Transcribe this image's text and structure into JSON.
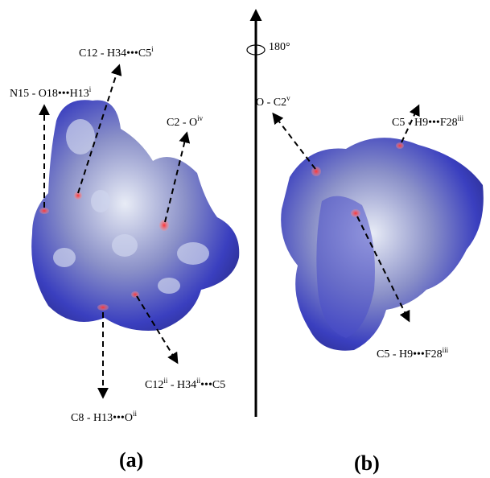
{
  "rotation": "180°",
  "panels": [
    {
      "label": "(a)",
      "annotations": [
        [
          {
            "t": "N15 - O18•••H13"
          },
          {
            "sup": "i"
          }
        ],
        [
          {
            "t": "C12 - H34•••C5"
          },
          {
            "sup": "i"
          }
        ],
        [
          {
            "t": "C2 - O"
          },
          {
            "sup": "iv"
          }
        ],
        [
          {
            "t": "C8 - H13•••O"
          },
          {
            "sup": "ii"
          }
        ],
        [
          {
            "t": "C12"
          },
          {
            "sup": "ii"
          },
          {
            "t": " - H34"
          },
          {
            "sup": "ii"
          },
          {
            "t": "•••C5"
          }
        ]
      ]
    },
    {
      "label": "(b)",
      "annotations": [
        [
          {
            "t": "O - C2"
          },
          {
            "sup": "v"
          }
        ],
        [
          {
            "t": "C5 - H9•••F28"
          },
          {
            "sup": "iii"
          }
        ],
        [
          {
            "t": "C5 - H9•••F28"
          },
          {
            "sup": "iii"
          }
        ]
      ]
    }
  ]
}
